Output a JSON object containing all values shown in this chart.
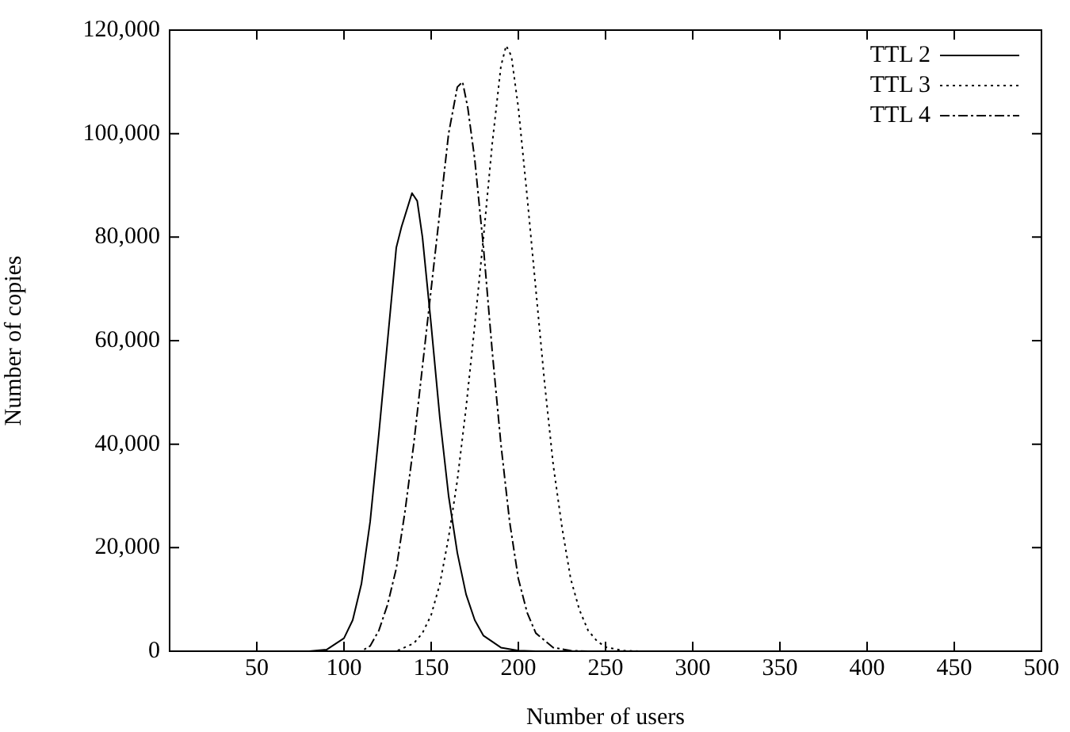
{
  "chart_data": {
    "type": "line",
    "xlabel": "Number of users",
    "ylabel": "Number of copies",
    "xlim": [
      0,
      500
    ],
    "xticks": [
      50,
      100,
      150,
      200,
      250,
      300,
      350,
      400,
      450,
      500
    ],
    "ylim": [
      0,
      120000
    ],
    "yticks": [
      {
        "value": 0,
        "label": "0"
      },
      {
        "value": 20000,
        "label": "20,000"
      },
      {
        "value": 40000,
        "label": "40,000"
      },
      {
        "value": 60000,
        "label": "60,000"
      },
      {
        "value": 80000,
        "label": "80,000"
      },
      {
        "value": 100000,
        "label": "100,000"
      },
      {
        "value": 120000,
        "label": "120,000"
      }
    ],
    "grid": false,
    "legend": "top right",
    "marker": "none",
    "series": [
      {
        "name": "TTL 2",
        "color": "#000000",
        "line_style": "solid",
        "x": [
          0,
          80,
          90,
          100,
          105,
          110,
          115,
          120,
          125,
          130,
          133,
          139,
          142,
          145,
          150,
          155,
          160,
          165,
          170,
          175,
          180,
          190,
          200,
          210,
          500
        ],
        "values": [
          0,
          0,
          300,
          2500,
          6000,
          13000,
          25000,
          42000,
          60000,
          78000,
          82000,
          88500,
          87000,
          80000,
          63000,
          45000,
          30000,
          19000,
          11000,
          6000,
          3000,
          700,
          100,
          0,
          0
        ]
      },
      {
        "name": "TTL 3",
        "color": "#000000",
        "line_style": "dotted",
        "x": [
          0,
          130,
          140,
          145,
          150,
          155,
          160,
          165,
          170,
          175,
          180,
          185,
          190,
          193,
          196,
          200,
          205,
          210,
          215,
          220,
          225,
          230,
          235,
          240,
          245,
          250,
          260,
          270,
          500
        ],
        "values": [
          0,
          0,
          1500,
          3500,
          7000,
          13000,
          22000,
          33000,
          47000,
          63000,
          80000,
          98000,
          113000,
          117000,
          115000,
          105000,
          88000,
          70000,
          52000,
          36000,
          24000,
          14000,
          8000,
          4000,
          2000,
          800,
          100,
          0,
          0
        ]
      },
      {
        "name": "TTL 4",
        "color": "#000000",
        "line_style": "dashed",
        "x": [
          0,
          110,
          115,
          120,
          125,
          130,
          135,
          140,
          145,
          150,
          155,
          160,
          165,
          168,
          171,
          175,
          180,
          185,
          190,
          195,
          200,
          205,
          210,
          220,
          230,
          240,
          500
        ],
        "values": [
          0,
          0,
          1000,
          4000,
          9000,
          16000,
          27000,
          40000,
          55000,
          70000,
          85000,
          100000,
          109000,
          110000,
          105000,
          95000,
          78000,
          58000,
          40000,
          25000,
          14000,
          7500,
          3500,
          700,
          100,
          0,
          0
        ]
      }
    ]
  }
}
